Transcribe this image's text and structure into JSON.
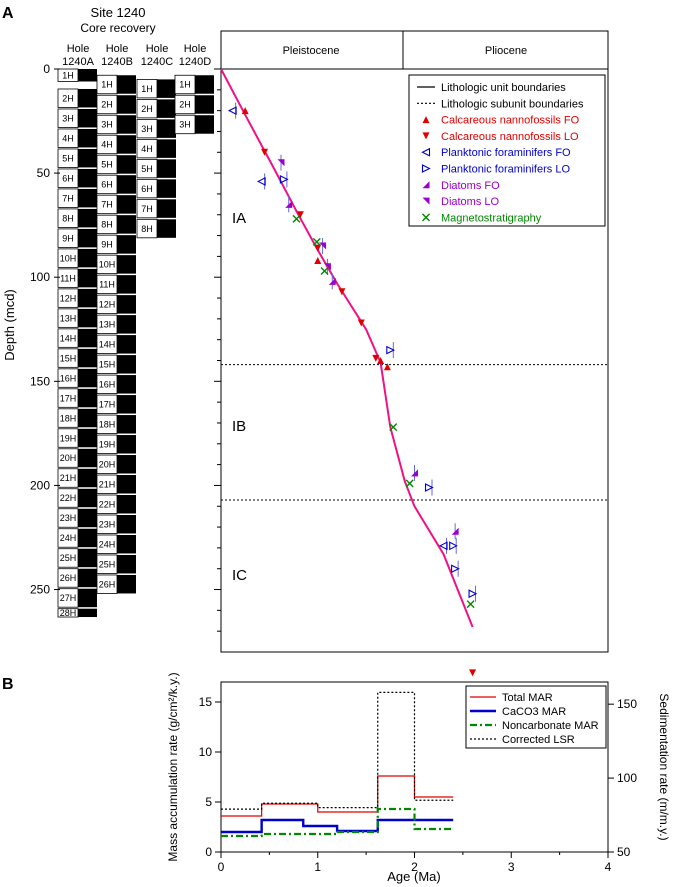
{
  "panel_a": {
    "label": "A",
    "site_title": "Site 1240",
    "site_subtitle": "Core recovery",
    "holes": [
      {
        "line1": "Hole",
        "line2": "1240A",
        "cores": [
          "1H",
          "2H",
          "3H",
          "4H",
          "5H",
          "6H",
          "7H",
          "8H",
          "9H",
          "10H",
          "11H",
          "12H",
          "13H",
          "14H",
          "15H",
          "16H",
          "17H",
          "18H",
          "19H",
          "20H",
          "21H",
          "22H",
          "23H",
          "24H",
          "25H",
          "26H",
          "27H",
          "28H"
        ]
      },
      {
        "line1": "Hole",
        "line2": "1240B",
        "cores": [
          "1H",
          "2H",
          "3H",
          "4H",
          "5H",
          "6H",
          "7H",
          "8H",
          "9H",
          "10H",
          "11H",
          "12H",
          "13H",
          "14H",
          "15H",
          "16H",
          "17H",
          "18H",
          "19H",
          "20H",
          "21H",
          "22H",
          "23H",
          "24H",
          "25H",
          "26H"
        ]
      },
      {
        "line1": "Hole",
        "line2": "1240C",
        "cores": [
          "1H",
          "2H",
          "3H",
          "4H",
          "5H",
          "6H",
          "7H",
          "8H"
        ]
      },
      {
        "line1": "Hole",
        "line2": "1240D",
        "cores": [
          "1H",
          "2H",
          "3H"
        ]
      }
    ],
    "epochs": [
      "Pleistocene",
      "Pliocene"
    ],
    "units": [
      "IA",
      "IB",
      "IC"
    ],
    "legend": [
      {
        "label": "Lithologic unit boundaries",
        "symbol": "solid-line",
        "color": "#000000"
      },
      {
        "label": "Lithologic subunit boundaries",
        "symbol": "dotted-line",
        "color": "#000000"
      },
      {
        "label": "Calcareous nannofossils FO",
        "symbol": "triangle-up",
        "color": "#e00000"
      },
      {
        "label": "Calcareous nannofossils LO",
        "symbol": "triangle-down",
        "color": "#e00000"
      },
      {
        "label": "Planktonic foraminifers FO",
        "symbol": "triangle-left",
        "color": "#0000cc"
      },
      {
        "label": "Planktonic foraminifers LO",
        "symbol": "triangle-right",
        "color": "#0000cc"
      },
      {
        "label": "Diatoms FO",
        "symbol": "flag-up",
        "color": "#9900cc"
      },
      {
        "label": "Diatoms LO",
        "symbol": "flag-down",
        "color": "#9900cc"
      },
      {
        "label": "Magnetostratigraphy",
        "symbol": "cross",
        "color": "#008800"
      }
    ],
    "y_axis_label": "Depth (mcd)",
    "y_ticks": [
      "0",
      "50",
      "100",
      "150",
      "200",
      "250"
    ]
  },
  "panel_b": {
    "label": "B",
    "y_left_label": "Mass accumulation rate (g/cm²/k.y.)",
    "y_right_label": "Sedimentation rate (m/m.y.)",
    "x_axis_label": "Age (Ma)",
    "x_ticks": [
      "0",
      "1",
      "2",
      "3",
      "4"
    ],
    "y_left_ticks": [
      "0",
      "5",
      "10",
      "15"
    ],
    "y_right_ticks": [
      "50",
      "100",
      "150"
    ],
    "legend": [
      {
        "label": "Total MAR",
        "color": "#e00000",
        "style": "solid"
      },
      {
        "label": "CaCO3 MAR",
        "color": "#0000cc",
        "style": "solid-thick"
      },
      {
        "label": "Noncarbonate MAR",
        "color": "#008800",
        "style": "dashdot"
      },
      {
        "label": "Corrected LSR",
        "color": "#000000",
        "style": "dotted"
      }
    ]
  },
  "chart_data": [
    {
      "type": "scatter",
      "xlabel": "Age (Ma)",
      "ylabel": "Depth (mcd)",
      "xlim": [
        0,
        4
      ],
      "ylim": [
        290,
        0
      ],
      "age_depth_curve": {
        "x": [
          0,
          0.25,
          0.55,
          0.8,
          1.0,
          1.2,
          1.5,
          1.65,
          1.75,
          1.9,
          2.0,
          2.3,
          2.6
        ],
        "y": [
          0,
          22,
          48,
          70,
          87,
          103,
          125,
          141,
          172,
          198,
          210,
          233,
          268
        ]
      },
      "subunit_boundaries": [
        142,
        207
      ],
      "epoch_boundary_age": 1.85,
      "series": [
        {
          "name": "Calcareous nannofossils FO",
          "points": [
            [
              0.25,
              20
            ],
            [
              1.0,
              92
            ],
            [
              1.65,
              140
            ],
            [
              1.72,
              143
            ]
          ]
        },
        {
          "name": "Calcareous nannofossils LO",
          "points": [
            [
              0.45,
              40
            ],
            [
              0.82,
              70
            ],
            [
              1.0,
              86
            ],
            [
              1.25,
              107
            ],
            [
              1.45,
              122
            ],
            [
              1.6,
              139
            ],
            [
              2.6,
              290
            ]
          ]
        },
        {
          "name": "Planktonic foraminifers FO",
          "points": [
            [
              0.12,
              20
            ],
            [
              0.42,
              54
            ],
            [
              2.3,
              229
            ]
          ]
        },
        {
          "name": "Planktonic foraminifers LO",
          "points": [
            [
              0.65,
              53
            ],
            [
              1.75,
              135
            ],
            [
              2.15,
              201
            ],
            [
              2.4,
              229
            ],
            [
              2.42,
              240
            ],
            [
              2.6,
              252
            ]
          ]
        },
        {
          "name": "Diatoms FO",
          "points": [
            [
              0.7,
              65
            ],
            [
              1.15,
              102
            ],
            [
              2.0,
              194
            ],
            [
              2.42,
              222
            ]
          ]
        },
        {
          "name": "Diatoms LO",
          "points": [
            [
              0.62,
              45
            ],
            [
              1.05,
              85
            ],
            [
              1.1,
              95
            ]
          ]
        },
        {
          "name": "Magnetostratigraphy",
          "points": [
            [
              0.78,
              72
            ],
            [
              0.99,
              83
            ],
            [
              1.07,
              97
            ],
            [
              1.78,
              172
            ],
            [
              1.95,
              199
            ],
            [
              2.58,
              257
            ]
          ]
        }
      ]
    },
    {
      "type": "line",
      "xlabel": "Age (Ma)",
      "ylabel": "Mass accumulation rate (g/cm²/k.y.)",
      "y2label": "Sedimentation rate (m/m.y.)",
      "xlim": [
        0,
        4
      ],
      "ylim": [
        0,
        17
      ],
      "y2lim": [
        50,
        165
      ],
      "series": [
        {
          "name": "Total MAR",
          "axis": "left",
          "steps": [
            [
              0,
              0.42,
              3.6
            ],
            [
              0.42,
              1.0,
              4.8
            ],
            [
              1.0,
              1.62,
              4.0
            ],
            [
              1.62,
              2.0,
              7.6
            ],
            [
              2.0,
              2.4,
              5.5
            ]
          ]
        },
        {
          "name": "CaCO3 MAR",
          "axis": "left",
          "steps": [
            [
              0,
              0.42,
              2.0
            ],
            [
              0.42,
              0.85,
              3.2
            ],
            [
              0.85,
              1.2,
              2.6
            ],
            [
              1.2,
              1.62,
              2.1
            ],
            [
              1.62,
              2.0,
              3.2
            ],
            [
              2.0,
              2.4,
              3.2
            ]
          ]
        },
        {
          "name": "Noncarbonate MAR",
          "axis": "left",
          "steps": [
            [
              0,
              0.42,
              1.6
            ],
            [
              0.42,
              1.2,
              1.8
            ],
            [
              1.2,
              1.62,
              2.0
            ],
            [
              1.62,
              2.0,
              4.3
            ],
            [
              2.0,
              2.4,
              2.3
            ]
          ]
        },
        {
          "name": "Corrected LSR",
          "axis": "right",
          "steps": [
            [
              0,
              0.42,
              79
            ],
            [
              0.42,
              1.0,
              83
            ],
            [
              1.0,
              1.62,
              80
            ],
            [
              1.62,
              2.0,
              158
            ],
            [
              2.0,
              2.4,
              85
            ]
          ]
        }
      ]
    }
  ]
}
